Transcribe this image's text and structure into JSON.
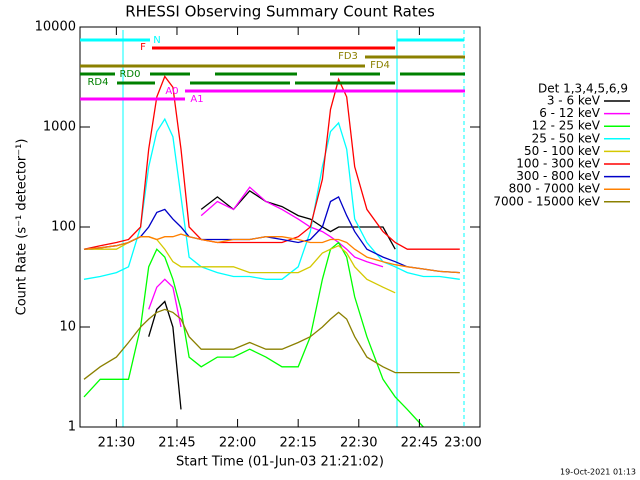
{
  "chart_data": {
    "type": "line",
    "title": "RHESSI Observing Summary Count Rates",
    "x_label": "Start Time (01-Jun-03 21:21:02)",
    "y_label": "Count Rate (s⁻¹ detector⁻¹)",
    "footer": "19-Oct-2021 01:13",
    "log_y": true,
    "xlim": [
      1281,
      1380
    ],
    "ylim": [
      1,
      10000
    ],
    "xticks": [
      {
        "value": 1290,
        "label": "21:30"
      },
      {
        "value": 1305,
        "label": "21:45"
      },
      {
        "value": 1320,
        "label": "22:00"
      },
      {
        "value": 1335,
        "label": "22:15"
      },
      {
        "value": 1350,
        "label": "22:30"
      },
      {
        "value": 1365,
        "label": "22:45"
      },
      {
        "value": 1380,
        "label": "23:00"
      }
    ],
    "yticks": [
      1,
      10,
      100,
      1000,
      10000
    ],
    "legend_title": "Det 1,3,4,5,6,9",
    "x": [
      1282,
      1286,
      1290,
      1293,
      1296,
      1298,
      1300,
      1302,
      1304,
      1306,
      1308,
      1311,
      1315,
      1319,
      1323,
      1327,
      1331,
      1335,
      1338,
      1341,
      1343,
      1345,
      1347,
      1349,
      1352,
      1356,
      1359,
      1362,
      1366,
      1370,
      1375
    ],
    "series": [
      {
        "name": "3 - 6 keV",
        "color": "#000000",
        "values": [
          null,
          null,
          null,
          null,
          null,
          8,
          15,
          18,
          10,
          1.5,
          null,
          150,
          200,
          150,
          230,
          180,
          160,
          130,
          120,
          100,
          90,
          100,
          100,
          100,
          100,
          100,
          60,
          null,
          null,
          null,
          null
        ]
      },
      {
        "name": "6 - 12 keV",
        "color": "#ff00ff",
        "values": [
          null,
          null,
          null,
          null,
          null,
          15,
          25,
          30,
          25,
          10,
          null,
          130,
          180,
          150,
          250,
          180,
          150,
          120,
          100,
          90,
          80,
          70,
          60,
          50,
          45,
          40,
          null,
          null,
          null,
          null,
          null
        ]
      },
      {
        "name": "12 - 25 keV",
        "color": "#00ff00",
        "values": [
          2,
          3,
          3,
          3,
          10,
          40,
          60,
          50,
          30,
          15,
          5,
          4,
          5,
          5,
          6,
          5,
          4,
          4,
          8,
          30,
          60,
          70,
          50,
          20,
          8,
          3,
          2,
          1.5,
          1,
          null,
          null
        ]
      },
      {
        "name": "25 - 50 keV",
        "color": "#00ffff",
        "values": [
          30,
          32,
          35,
          40,
          100,
          400,
          900,
          1200,
          800,
          200,
          50,
          40,
          35,
          32,
          32,
          30,
          30,
          40,
          90,
          400,
          900,
          1100,
          600,
          120,
          70,
          45,
          40,
          35,
          32,
          32,
          30
        ]
      },
      {
        "name": "50 - 100 keV",
        "color": "#d4c800",
        "values": [
          60,
          60,
          60,
          70,
          80,
          80,
          75,
          60,
          45,
          40,
          40,
          40,
          40,
          40,
          35,
          35,
          35,
          35,
          40,
          55,
          60,
          65,
          55,
          40,
          30,
          25,
          22,
          null,
          null,
          null,
          null
        ]
      },
      {
        "name": "100 - 300 keV",
        "color": "#ff0000",
        "values": [
          60,
          65,
          70,
          75,
          100,
          600,
          2000,
          3200,
          2500,
          600,
          100,
          75,
          70,
          70,
          70,
          70,
          70,
          80,
          100,
          300,
          1500,
          3000,
          2000,
          400,
          150,
          90,
          70,
          60,
          60,
          60,
          60
        ]
      },
      {
        "name": "300 - 800 keV",
        "color": "#0000c8",
        "values": [
          60,
          62,
          65,
          70,
          80,
          100,
          140,
          150,
          120,
          100,
          80,
          75,
          75,
          75,
          75,
          80,
          75,
          70,
          75,
          100,
          180,
          200,
          130,
          90,
          60,
          50,
          45,
          40,
          38,
          36,
          35
        ]
      },
      {
        "name": "800 - 7000 keV",
        "color": "#ff8000",
        "values": [
          60,
          62,
          65,
          70,
          80,
          80,
          75,
          80,
          80,
          85,
          80,
          75,
          70,
          75,
          75,
          80,
          80,
          75,
          70,
          70,
          75,
          75,
          70,
          60,
          50,
          45,
          42,
          40,
          38,
          36,
          35
        ]
      },
      {
        "name": "7000 - 15000 keV",
        "color": "#8b8000",
        "values": [
          3,
          4,
          5,
          7,
          10,
          12,
          14,
          15,
          14,
          12,
          8,
          6,
          6,
          6,
          7,
          6,
          6,
          7,
          8,
          10,
          12,
          14,
          12,
          8,
          5,
          4,
          3.5,
          3.5,
          3.5,
          3.5,
          3.5
        ]
      }
    ],
    "flags": [
      {
        "label": "N",
        "color": "#00ffff"
      },
      {
        "label": "F",
        "color": "#ff0000"
      },
      {
        "label": "FD3",
        "color": "#8b8000"
      },
      {
        "label": "FD4",
        "color": "#8b8000"
      },
      {
        "label": "RD0",
        "color": "#008000"
      },
      {
        "label": "RD4",
        "color": "#008000"
      },
      {
        "label": "A0",
        "color": "#ff00ff"
      },
      {
        "label": "A1",
        "color": "#ff00ff"
      }
    ]
  }
}
